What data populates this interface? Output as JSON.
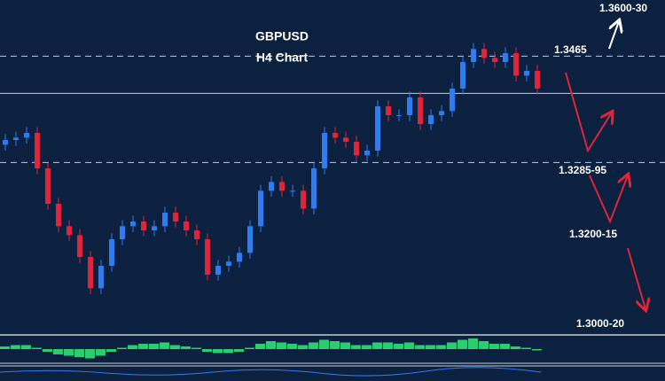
{
  "chart_data": [
    {
      "type": "candlestick",
      "title": "GBPUSD",
      "subtitle": "H4 Chart",
      "open": [
        1.3315,
        1.3323,
        1.3327,
        1.3335,
        1.3275,
        1.3215,
        1.3177,
        1.3162,
        1.3125,
        1.3072,
        1.311,
        1.3155,
        1.3177,
        1.3185,
        1.317,
        1.3177,
        1.32,
        1.3185,
        1.317,
        1.3155,
        1.3095,
        1.311,
        1.3117,
        1.3132,
        1.3177,
        1.3237,
        1.3252,
        1.3237,
        1.3237,
        1.3207,
        1.3275,
        1.3335,
        1.3327,
        1.332,
        1.3297,
        1.3305,
        1.338,
        1.3365,
        1.3365,
        1.3395,
        1.335,
        1.3365,
        1.3372,
        1.341,
        1.3455,
        1.3477,
        1.3462,
        1.3455,
        1.347,
        1.3432,
        1.344
      ],
      "high": [
        1.3333,
        1.3337,
        1.3345,
        1.3345,
        1.3285,
        1.3225,
        1.3187,
        1.3172,
        1.3135,
        1.312,
        1.3165,
        1.3187,
        1.3195,
        1.3195,
        1.3187,
        1.321,
        1.321,
        1.3195,
        1.318,
        1.3165,
        1.312,
        1.3127,
        1.3142,
        1.3187,
        1.3247,
        1.3262,
        1.3262,
        1.3247,
        1.3247,
        1.3285,
        1.3345,
        1.3345,
        1.3337,
        1.333,
        1.3315,
        1.339,
        1.339,
        1.3375,
        1.3405,
        1.3405,
        1.3375,
        1.3382,
        1.342,
        1.3465,
        1.3487,
        1.3487,
        1.3472,
        1.348,
        1.348,
        1.345,
        1.345
      ],
      "low": [
        1.3305,
        1.3313,
        1.3317,
        1.3265,
        1.3205,
        1.3167,
        1.3152,
        1.3115,
        1.3062,
        1.3062,
        1.31,
        1.3145,
        1.3167,
        1.316,
        1.316,
        1.3167,
        1.3175,
        1.316,
        1.3145,
        1.3085,
        1.3085,
        1.31,
        1.3107,
        1.3122,
        1.3167,
        1.3227,
        1.3227,
        1.3227,
        1.3197,
        1.3197,
        1.3265,
        1.3317,
        1.331,
        1.3287,
        1.3287,
        1.3295,
        1.3355,
        1.3355,
        1.3355,
        1.334,
        1.334,
        1.3355,
        1.3362,
        1.34,
        1.3445,
        1.3452,
        1.3445,
        1.3445,
        1.3422,
        1.3422,
        1.34
      ],
      "close": [
        1.3323,
        1.3327,
        1.3335,
        1.3275,
        1.3215,
        1.3177,
        1.3162,
        1.3125,
        1.3072,
        1.311,
        1.3155,
        1.3177,
        1.3185,
        1.317,
        1.3177,
        1.32,
        1.3185,
        1.317,
        1.3155,
        1.3095,
        1.311,
        1.3117,
        1.3132,
        1.3177,
        1.3237,
        1.3252,
        1.3237,
        1.3237,
        1.3207,
        1.3275,
        1.3335,
        1.3327,
        1.332,
        1.3297,
        1.3305,
        1.338,
        1.3365,
        1.3365,
        1.3395,
        1.335,
        1.3365,
        1.3372,
        1.341,
        1.3455,
        1.3477,
        1.3462,
        1.3455,
        1.347,
        1.3432,
        1.344,
        1.341
      ],
      "up_color": "#2f7cf0",
      "down_color": "#e0243a",
      "ylim": [
        1.2993,
        1.356
      ],
      "levels": [
        {
          "value": 1.3465,
          "style": "dashed"
        },
        {
          "value": 1.3402,
          "style": "solid"
        },
        {
          "value": 1.3285,
          "style": "dashed"
        }
      ],
      "annotations": [
        {
          "text": "1.3600-30",
          "color": "#2f9bff"
        },
        {
          "text": "1.3465",
          "color": "#ffffff"
        },
        {
          "text": "1.3285-95",
          "color": "#ffffff"
        },
        {
          "text": "1.3200-15",
          "color": "#ffffff"
        },
        {
          "text": "1.3000-20",
          "color": "#2f9bff"
        }
      ]
    },
    {
      "type": "bar",
      "color": "#2ecc71",
      "ylim": [
        -10,
        10
      ],
      "values": [
        2,
        3,
        3,
        1,
        -2,
        -4,
        -5,
        -6,
        -7,
        -5,
        -2,
        1,
        3,
        4,
        4,
        5,
        3,
        2,
        1,
        -2,
        -3,
        -3,
        -2,
        1,
        4,
        6,
        5,
        4,
        3,
        5,
        7,
        6,
        5,
        3,
        3,
        5,
        5,
        4,
        5,
        3,
        3,
        3,
        5,
        7,
        8,
        6,
        4,
        4,
        2,
        1,
        -1
      ]
    }
  ]
}
